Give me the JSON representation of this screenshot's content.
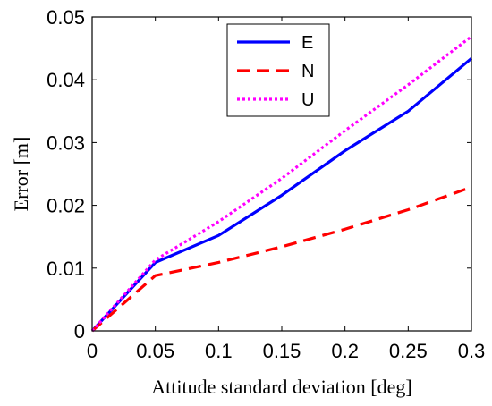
{
  "chart_data": {
    "type": "line",
    "xlabel": "Attitude standard deviation [deg]",
    "ylabel": "Error [m]",
    "xlim": [
      0,
      0.3
    ],
    "ylim": [
      0,
      0.05
    ],
    "xticks": [
      0,
      0.05,
      0.1,
      0.15,
      0.2,
      0.25,
      0.3
    ],
    "xtick_labels": [
      "0",
      "0.05",
      "0.1",
      "0.15",
      "0.2",
      "0.25",
      "0.3"
    ],
    "yticks": [
      0,
      0.01,
      0.02,
      0.03,
      0.04,
      0.05
    ],
    "ytick_labels": [
      "0",
      "0.01",
      "0.02",
      "0.03",
      "0.04",
      "0.05"
    ],
    "grid": false,
    "legend_placement": "top-center",
    "x": [
      0,
      0.05,
      0.1,
      0.15,
      0.2,
      0.25,
      0.3
    ],
    "series": [
      {
        "name": "E",
        "color": "#0000ff",
        "style": "solid",
        "values": [
          0,
          0.0109,
          0.0152,
          0.0216,
          0.0287,
          0.035,
          0.0434
        ]
      },
      {
        "name": "N",
        "color": "#ff0000",
        "style": "dashed",
        "values": [
          0,
          0.0088,
          0.0109,
          0.0134,
          0.0162,
          0.0193,
          0.0229
        ]
      },
      {
        "name": "U",
        "color": "#ff00ff",
        "style": "dotted",
        "values": [
          0,
          0.0113,
          0.0174,
          0.0243,
          0.0319,
          0.0392,
          0.0469
        ]
      }
    ]
  }
}
